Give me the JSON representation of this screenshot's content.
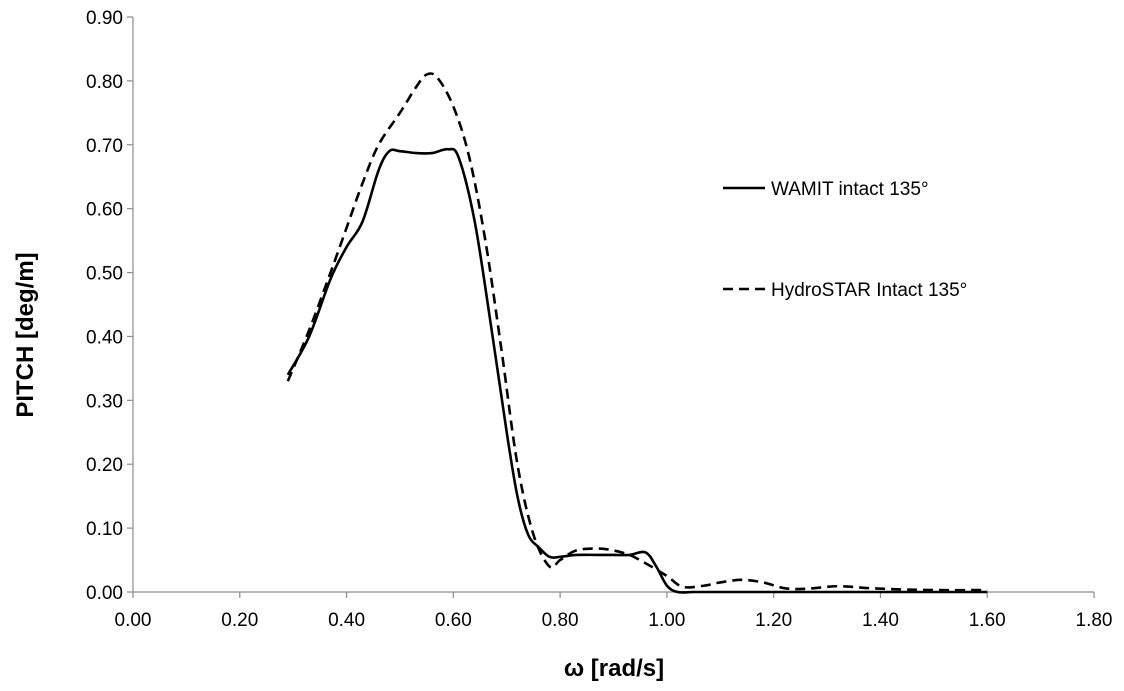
{
  "chart_data": {
    "type": "line",
    "title": "",
    "xlabel": "ω [rad/s]",
    "ylabel": "PITCH [deg/m]",
    "xlim": [
      0.0,
      1.8
    ],
    "ylim": [
      0.0,
      0.9
    ],
    "xticks": [
      "0.00",
      "0.20",
      "0.40",
      "0.60",
      "0.80",
      "1.00",
      "1.20",
      "1.40",
      "1.60",
      "1.80"
    ],
    "yticks": [
      "0.00",
      "0.10",
      "0.20",
      "0.30",
      "0.40",
      "0.50",
      "0.60",
      "0.70",
      "0.80",
      "0.90"
    ],
    "grid": false,
    "legend_position": "right",
    "series": [
      {
        "name": "WAMIT intact 135°",
        "style": "solid",
        "color": "#000000",
        "x": [
          0.29,
          0.33,
          0.37,
          0.4,
          0.43,
          0.46,
          0.48,
          0.5,
          0.53,
          0.56,
          0.59,
          0.61,
          0.64,
          0.67,
          0.7,
          0.72,
          0.74,
          0.76,
          0.78,
          0.8,
          0.83,
          0.87,
          0.9,
          0.93,
          0.96,
          0.98,
          1.0,
          1.02,
          1.05,
          1.1,
          1.2,
          1.4,
          1.6
        ],
        "y": [
          0.34,
          0.4,
          0.49,
          0.54,
          0.58,
          0.66,
          0.69,
          0.69,
          0.687,
          0.687,
          0.693,
          0.68,
          0.58,
          0.42,
          0.25,
          0.15,
          0.09,
          0.07,
          0.055,
          0.055,
          0.058,
          0.058,
          0.058,
          0.058,
          0.062,
          0.04,
          0.01,
          0.0,
          0.0,
          0.0,
          0.0,
          0.0,
          0.0
        ]
      },
      {
        "name": "HydroSTAR Intact  135°",
        "style": "dashed",
        "color": "#000000",
        "x": [
          0.29,
          0.33,
          0.37,
          0.4,
          0.43,
          0.46,
          0.5,
          0.53,
          0.55,
          0.57,
          0.6,
          0.63,
          0.66,
          0.69,
          0.72,
          0.75,
          0.78,
          0.8,
          0.83,
          0.87,
          0.9,
          0.93,
          0.96,
          1.0,
          1.03,
          1.07,
          1.1,
          1.14,
          1.18,
          1.22,
          1.26,
          1.32,
          1.38,
          1.44,
          1.5,
          1.6
        ],
        "y": [
          0.33,
          0.41,
          0.5,
          0.57,
          0.64,
          0.7,
          0.75,
          0.79,
          0.81,
          0.805,
          0.76,
          0.68,
          0.55,
          0.38,
          0.2,
          0.09,
          0.04,
          0.05,
          0.065,
          0.068,
          0.065,
          0.058,
          0.045,
          0.025,
          0.008,
          0.01,
          0.015,
          0.019,
          0.015,
          0.006,
          0.005,
          0.009,
          0.006,
          0.004,
          0.003,
          0.003
        ]
      }
    ]
  }
}
